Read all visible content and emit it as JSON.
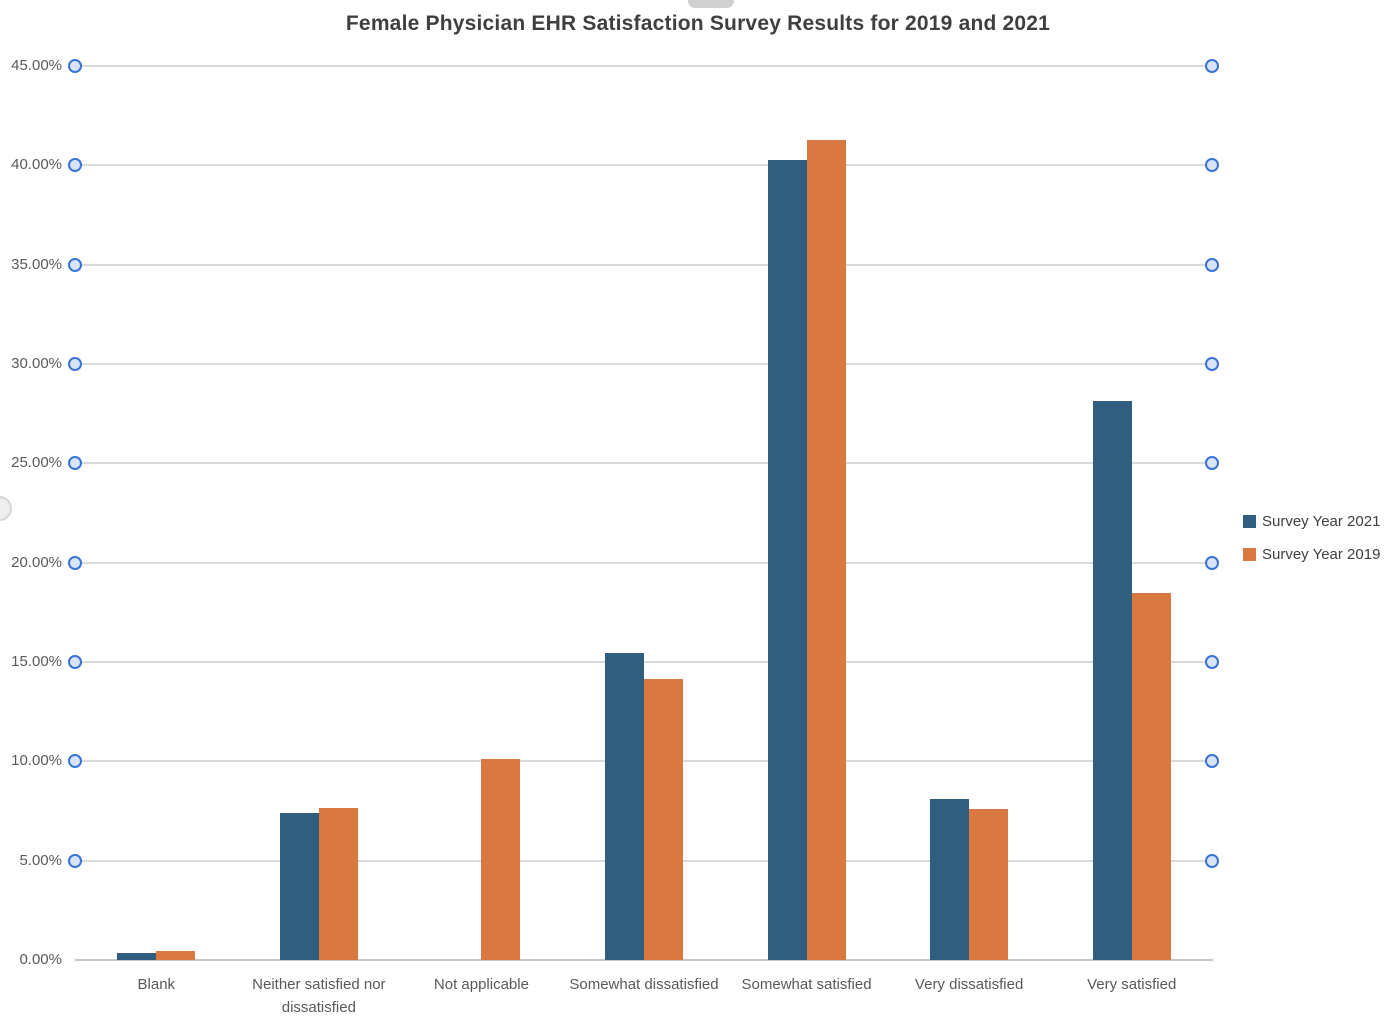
{
  "title": "Female Physician EHR Satisfaction Survey Results for 2019 and 2021",
  "colors": {
    "series_2021": "#2f5e7e",
    "series_2019": "#d97941",
    "gridline": "#dadada",
    "axis_line": "#c6c6c6",
    "tick_circle_border": "#3a73d8",
    "tick_circle_fill": "#d9e5f6",
    "title_text": "#3f3f3f",
    "axis_text": "#595959"
  },
  "legend": {
    "items": [
      {
        "label": "Survey Year 2021",
        "color": "#2f5e7e"
      },
      {
        "label": "Survey Year 2019",
        "color": "#d97941"
      }
    ],
    "position": "right"
  },
  "chart_data": {
    "type": "bar",
    "title": "Female Physician EHR Satisfaction Survey Results for 2019 and 2021",
    "categories": [
      "Blank",
      "Neither satisfied nor dissatisfied",
      "Not applicable",
      "Somewhat dissatisfied",
      "Somewhat satisfied",
      "Very dissatisfied",
      "Very satisfied"
    ],
    "series": [
      {
        "name": "Survey Year 2021",
        "color": "#2f5e7e",
        "values": [
          0.35,
          7.42,
          0,
          15.45,
          40.28,
          8.1,
          28.14
        ]
      },
      {
        "name": "Survey Year 2019",
        "color": "#d97941",
        "values": [
          0.44,
          7.65,
          10.12,
          14.15,
          41.29,
          7.6,
          18.47
        ]
      }
    ],
    "xlabel": "",
    "ylabel": "",
    "y_axis": {
      "min": 0,
      "max": 45,
      "step": 5,
      "tick_labels": [
        "0.00%",
        "5.00%",
        "10.00%",
        "15.00%",
        "20.00%",
        "25.00%",
        "30.00%",
        "35.00%",
        "40.00%",
        "45.00%"
      ]
    },
    "grid": true,
    "legend_position": "right",
    "gridline_endpoint_markers": "blue-circles-at-5-to-45-percent"
  }
}
